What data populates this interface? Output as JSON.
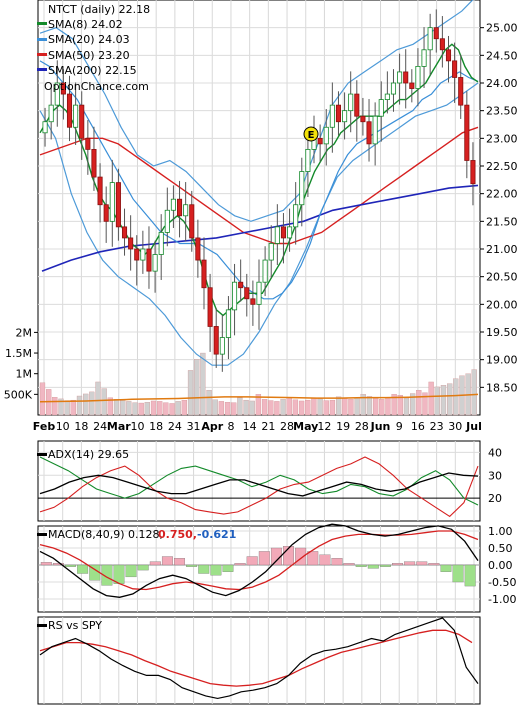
{
  "chart_data": {
    "type": "line",
    "ticker_title": "NTCT (daily) 22.18",
    "watermark": "OptionChance.com",
    "legend": [
      {
        "label": "SMA(8) 24.02",
        "color": "#138a2a"
      },
      {
        "label": "SMA(20) 24.03",
        "color": "#3a8fd8"
      },
      {
        "label": "SMA(50) 23.20",
        "color": "#d62020"
      },
      {
        "label": "SMA(200) 22.15",
        "color": "#1f25b8"
      }
    ],
    "x_tick_labels": [
      "Feb",
      "10",
      "18",
      "24",
      "Mar",
      "10",
      "18",
      "24",
      "31",
      "Apr",
      "8",
      "14",
      "21",
      "28",
      "May",
      "12",
      "19",
      "28",
      "Jun",
      "9",
      "16",
      "23",
      "30",
      "Jul"
    ],
    "earnings_marker": "E",
    "price": {
      "ylim": [
        18.0,
        25.5
      ],
      "ytick_labels": [
        "25.00",
        "24.50",
        "24.00",
        "23.50",
        "23.00",
        "22.50",
        "22.00",
        "21.50",
        "21.00",
        "20.50",
        "20.00",
        "19.50",
        "19.00",
        "18.50"
      ],
      "ytick_values": [
        25.0,
        24.5,
        24.0,
        23.5,
        23.0,
        22.5,
        22.0,
        21.5,
        21.0,
        20.5,
        20.0,
        19.5,
        19.0,
        18.5
      ],
      "closes": [
        23.3,
        23.6,
        24.0,
        23.8,
        23.2,
        23.6,
        23.0,
        22.8,
        22.3,
        21.8,
        21.5,
        22.2,
        21.4,
        21.2,
        21.0,
        20.8,
        21.0,
        20.6,
        20.9,
        21.3,
        21.7,
        21.9,
        21.6,
        21.8,
        21.2,
        20.8,
        20.3,
        19.6,
        19.1,
        19.4,
        19.9,
        20.4,
        20.3,
        20.1,
        20.0,
        20.4,
        20.8,
        21.1,
        21.4,
        21.2,
        21.4,
        21.8,
        22.4,
        22.8,
        23.0,
        22.9,
        23.2,
        23.6,
        23.3,
        23.5,
        23.8,
        23.4,
        23.3,
        22.9,
        23.4,
        23.7,
        23.8,
        24.0,
        24.2,
        24.0,
        23.9,
        24.3,
        24.6,
        25.0,
        24.8,
        24.6,
        24.4,
        24.1,
        23.6,
        22.6,
        22.18
      ],
      "sma8": [
        23.1,
        23.3,
        23.5,
        23.6,
        23.5,
        23.3,
        23.0,
        22.7,
        22.3,
        22.0,
        21.8,
        21.7,
        21.5,
        21.3,
        21.1,
        21.0,
        20.9,
        21.0,
        21.2,
        21.4,
        21.5,
        21.6,
        21.5,
        21.3,
        21.0,
        20.6,
        20.2,
        19.9,
        19.8,
        19.9,
        20.0,
        20.1,
        20.2,
        20.2,
        20.2,
        20.4,
        20.6,
        20.8,
        21.1,
        21.4,
        21.8,
        22.1,
        22.4,
        22.6,
        22.8,
        22.9,
        23.1,
        23.2,
        23.3,
        23.4,
        23.4,
        23.4,
        23.4,
        23.5,
        23.6,
        23.7,
        23.7,
        23.8,
        23.9,
        24.0,
        24.2,
        24.4,
        24.6,
        24.7,
        24.6,
        24.3,
        24.1,
        24.02
      ],
      "sma20": [
        24.4,
        24.3,
        24.1,
        23.9,
        23.7,
        23.4,
        23.1,
        22.8,
        22.5,
        22.2,
        21.9,
        21.7,
        21.5,
        21.3,
        21.2,
        21.1,
        21.1,
        21.1,
        21.0,
        20.9,
        20.7,
        20.5,
        20.3,
        20.2,
        20.1,
        20.1,
        20.2,
        20.4,
        20.7,
        21.1,
        21.6,
        22.0,
        22.4,
        22.7,
        22.9,
        23.0,
        23.1,
        23.2,
        23.3,
        23.4,
        23.5,
        23.7,
        23.8,
        24.0,
        24.1,
        24.2,
        24.1,
        24.03
      ],
      "sma50": [
        22.7,
        22.8,
        22.9,
        23.0,
        23.0,
        22.9,
        22.7,
        22.5,
        22.3,
        22.1,
        21.9,
        21.7,
        21.5,
        21.3,
        21.2,
        21.1,
        21.1,
        21.2,
        21.3,
        21.5,
        21.7,
        21.9,
        22.1,
        22.3,
        22.5,
        22.7,
        22.9,
        23.1,
        23.2
      ],
      "sma200": [
        20.6,
        20.8,
        20.95,
        21.05,
        21.1,
        21.15,
        21.2,
        21.3,
        21.4,
        21.5,
        21.7,
        21.8,
        21.9,
        22.0,
        22.1,
        22.15
      ],
      "bb_upper": [
        24.9,
        25.0,
        24.8,
        24.3,
        23.8,
        23.2,
        22.7,
        22.5,
        22.6,
        22.4,
        22.1,
        21.8,
        21.6,
        21.5,
        21.6,
        21.7,
        22.0,
        22.8,
        23.6,
        24.0,
        24.2,
        24.4,
        24.6,
        24.7,
        24.9,
        25.1,
        25.3,
        25.6
      ],
      "bb_lower": [
        23.5,
        23.0,
        22.0,
        21.3,
        20.8,
        20.5,
        20.3,
        20.1,
        19.8,
        19.4,
        19.1,
        18.9,
        18.9,
        19.1,
        19.5,
        20.0,
        20.4,
        21.0,
        21.7,
        22.3,
        22.6,
        22.8,
        23.0,
        23.2,
        23.4,
        23.5,
        23.6,
        23.8,
        24.0
      ]
    },
    "volume": {
      "ytick_labels": [
        "2M",
        "1.5M",
        "1M",
        "500K"
      ],
      "ytick_values": [
        2000000,
        1500000,
        1000000,
        500000
      ],
      "values": [
        780000,
        620000,
        430000,
        390000,
        350000,
        360000,
        460000,
        510000,
        560000,
        800000,
        640000,
        420000,
        380000,
        350000,
        330000,
        300000,
        290000,
        310000,
        340000,
        330000,
        300000,
        280000,
        330000,
        360000,
        1080000,
        1350000,
        1500000,
        600000,
        370000,
        330000,
        310000,
        300000,
        420000,
        360000,
        340000,
        500000,
        380000,
        350000,
        330000,
        380000,
        430000,
        370000,
        340000,
        360000,
        420000,
        390000,
        350000,
        360000,
        440000,
        400000,
        380000,
        420000,
        500000,
        450000,
        400000,
        380000,
        420000,
        500000,
        480000,
        410000,
        520000,
        600000,
        540000,
        800000,
        680000,
        720000,
        760000,
        880000,
        950000,
        1000000,
        1100000
      ],
      "average": [
        320000,
        330000,
        340000,
        360000,
        380000,
        390000,
        400000,
        420000,
        440000,
        440000,
        430000,
        420000,
        410000,
        410000,
        420000,
        420000,
        430000,
        450000,
        470000,
        500000
      ]
    },
    "adx": {
      "label": "ADX(14) 29.65",
      "ytick_labels": [
        "40",
        "30",
        "20"
      ],
      "ytick_values": [
        40,
        30,
        20
      ],
      "adx_line": [
        22,
        24,
        27,
        29,
        30,
        29,
        27,
        25,
        23,
        22,
        22,
        24,
        26,
        28,
        28,
        26,
        24,
        22,
        21,
        23,
        25,
        27,
        26,
        24,
        23,
        24,
        27,
        29,
        31,
        30,
        29.65
      ],
      "plus_di": [
        38,
        35,
        32,
        28,
        24,
        22,
        20,
        22,
        26,
        30,
        33,
        34,
        32,
        30,
        28,
        25,
        27,
        30,
        28,
        24,
        22,
        23,
        26,
        25,
        22,
        21,
        24,
        29,
        32,
        28,
        20,
        17
      ],
      "minus_di": [
        14,
        16,
        20,
        25,
        29,
        32,
        34,
        30,
        24,
        20,
        18,
        15,
        14,
        13,
        14,
        17,
        20,
        24,
        26,
        27,
        30,
        33,
        35,
        38,
        35,
        30,
        24,
        20,
        16,
        12,
        18,
        34
      ]
    },
    "macd": {
      "label": "MACD(8,40,9) 0.128,",
      "signal_label": "0.750,",
      "hist_label": "-0.621",
      "ytick_labels": [
        "1.00",
        "0.50",
        "0.00",
        "-0.50",
        "-1.00"
      ],
      "ytick_values": [
        1.0,
        0.5,
        0.0,
        -0.5,
        -1.0
      ],
      "macd_line": [
        0.4,
        0.2,
        -0.1,
        -0.4,
        -0.7,
        -0.9,
        -0.95,
        -0.85,
        -0.6,
        -0.4,
        -0.3,
        -0.4,
        -0.6,
        -0.8,
        -0.9,
        -0.75,
        -0.5,
        -0.2,
        0.2,
        0.6,
        0.9,
        1.1,
        1.2,
        1.15,
        1.0,
        0.9,
        0.85,
        0.9,
        1.0,
        1.1,
        1.15,
        1.05,
        0.7,
        0.128
      ],
      "signal_line": [
        0.6,
        0.5,
        0.35,
        0.15,
        -0.1,
        -0.35,
        -0.55,
        -0.7,
        -0.72,
        -0.65,
        -0.55,
        -0.5,
        -0.55,
        -0.62,
        -0.7,
        -0.72,
        -0.65,
        -0.5,
        -0.3,
        0.0,
        0.3,
        0.55,
        0.75,
        0.85,
        0.9,
        0.9,
        0.88,
        0.88,
        0.9,
        0.95,
        1.0,
        1.0,
        0.9,
        0.75
      ],
      "histogram": [
        0.08,
        0.05,
        -0.05,
        -0.25,
        -0.45,
        -0.6,
        -0.55,
        -0.35,
        -0.15,
        0.1,
        0.25,
        0.2,
        -0.05,
        -0.25,
        -0.3,
        -0.2,
        0.05,
        0.25,
        0.4,
        0.5,
        0.55,
        0.5,
        0.4,
        0.3,
        0.2,
        0.05,
        -0.05,
        -0.1,
        -0.05,
        0.05,
        0.1,
        0.1,
        0.05,
        -0.2,
        -0.5,
        -0.62
      ]
    },
    "rs_vs_spy": {
      "label": "RS vs SPY",
      "rs_line": [
        0.55,
        0.65,
        0.7,
        0.75,
        0.68,
        0.6,
        0.5,
        0.42,
        0.35,
        0.3,
        0.3,
        0.25,
        0.15,
        0.1,
        0.05,
        0.02,
        0.05,
        0.1,
        0.12,
        0.15,
        0.2,
        0.3,
        0.45,
        0.55,
        0.6,
        0.62,
        0.65,
        0.7,
        0.75,
        0.72,
        0.8,
        0.85,
        0.9,
        0.95,
        1.0,
        0.85,
        0.4,
        0.2
      ],
      "rs_avg": [
        0.6,
        0.65,
        0.7,
        0.7,
        0.68,
        0.65,
        0.6,
        0.55,
        0.48,
        0.42,
        0.35,
        0.3,
        0.25,
        0.2,
        0.18,
        0.17,
        0.18,
        0.2,
        0.25,
        0.3,
        0.38,
        0.45,
        0.52,
        0.58,
        0.62,
        0.66,
        0.7,
        0.74,
        0.78,
        0.82,
        0.85,
        0.85,
        0.8,
        0.7
      ]
    }
  }
}
